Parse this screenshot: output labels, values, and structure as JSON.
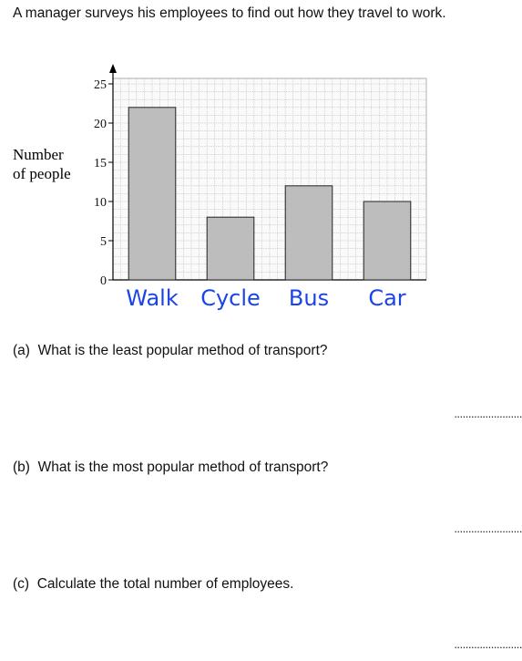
{
  "intro": "A manager surveys his employees to find out how they travel to work.",
  "chart_data": {
    "type": "bar",
    "categories": [
      "Walk",
      "Cycle",
      "Bus",
      "Car"
    ],
    "values": [
      22,
      8,
      12,
      10
    ],
    "title": "",
    "xlabel": "",
    "ylabel_lines": [
      "Number",
      "of people"
    ],
    "ylim": [
      0,
      25
    ],
    "yticks": [
      0,
      5,
      10,
      15,
      20,
      25
    ],
    "grid": true,
    "bar_color": "#bdbdbd",
    "category_color": "#1a44e8"
  },
  "questions": [
    {
      "label": "(a)",
      "text": "What is the least popular method of transport?",
      "answer_line": "........................"
    },
    {
      "label": "(b)",
      "text": "What is the most popular method of transport?",
      "answer_line": "........................"
    },
    {
      "label": "(c)",
      "text": "Calculate the total number of employees.",
      "answer_line": "........................"
    }
  ]
}
